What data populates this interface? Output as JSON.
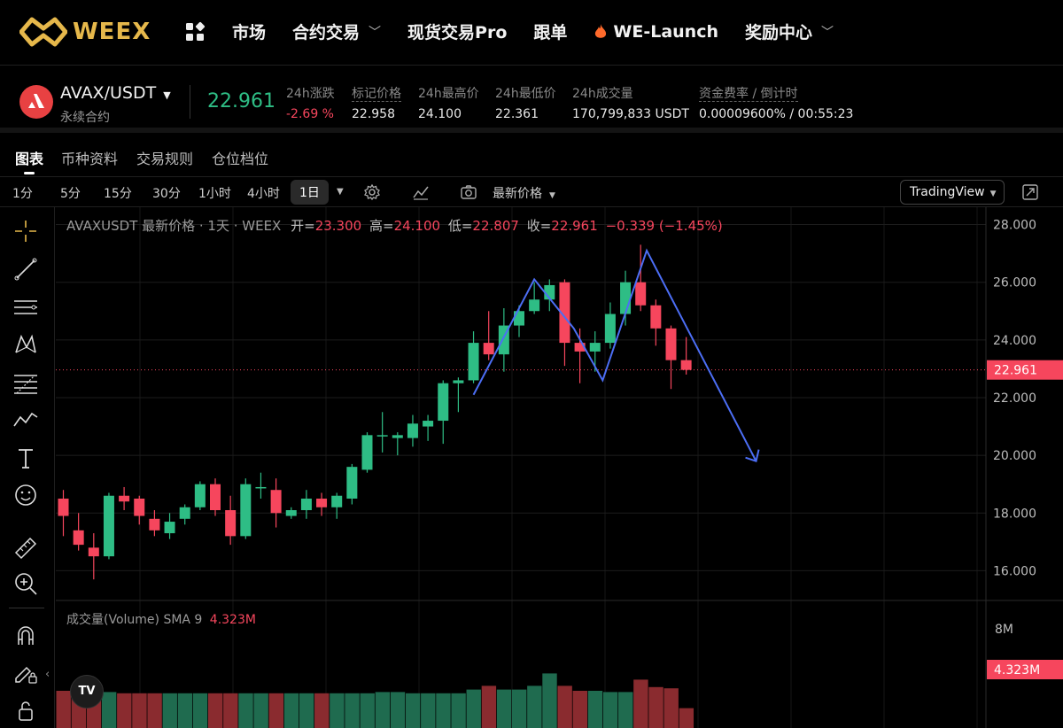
{
  "brand": {
    "name": "WEEX",
    "color": "#e6b84b"
  },
  "nav": {
    "items": [
      {
        "label": "市场",
        "dropdown": false
      },
      {
        "label": "合约交易",
        "dropdown": true
      },
      {
        "label": "现货交易Pro",
        "dropdown": false
      },
      {
        "label": "跟单",
        "dropdown": false
      },
      {
        "label": "WE-Launch",
        "dropdown": false,
        "icon": "flame-icon"
      },
      {
        "label": "奖励中心",
        "dropdown": true
      }
    ]
  },
  "ticker": {
    "pair": "AVAX/USDT",
    "contract_type": "永续合约",
    "last_price": "22.961",
    "stats": [
      {
        "label": "24h涨跌",
        "value": "-2.69 %",
        "color": "#f6465d"
      },
      {
        "label": "标记价格",
        "value": "22.958"
      },
      {
        "label": "24h最高价",
        "value": "24.100"
      },
      {
        "label": "24h最低价",
        "value": "22.361"
      },
      {
        "label": "24h成交量",
        "value": "170,799,833 USDT"
      },
      {
        "label": "资金费率 / 倒计时",
        "value": "0.00009600% / 00:55:23"
      }
    ]
  },
  "tabs": [
    "图表",
    "币种资料",
    "交易规则",
    "仓位档位"
  ],
  "intervals": [
    "1分",
    "5分",
    "15分",
    "30分",
    "1小时",
    "4小时",
    "1日"
  ],
  "active_interval": "1日",
  "price_type": "最新价格",
  "tradingview_label": "TradingView",
  "colors": {
    "up": "#2ebd85",
    "down": "#f6465d",
    "volume_up": "#1f6b4f",
    "volume_down": "#8a2b2f",
    "pattern_line": "#4c6ef5"
  },
  "legend": {
    "symbol": "AVAXUSDT 最新价格 · 1天 · WEEX",
    "open_label": "开=",
    "open": "23.300",
    "high_label": "高=",
    "high": "24.100",
    "low_label": "低=",
    "low": "22.807",
    "close_label": "收=",
    "close": "22.961",
    "change": "−0.339 (−1.45%)"
  },
  "volume_legend": {
    "label": "成交量(Volume) SMA 9",
    "value": "4.323M"
  },
  "tv_badge": "TV",
  "chart_data": {
    "type": "candlestick",
    "y_ticks": [
      "28.000",
      "26.000",
      "24.000",
      "22.000",
      "20.000",
      "18.000",
      "16.000"
    ],
    "ylim": [
      15.0,
      28.6
    ],
    "current_price": 22.961,
    "current_price_label": "22.961",
    "volume_ticks": [
      "8M"
    ],
    "volume_max": 10,
    "volume_current_label": "4.323M",
    "candles": [
      {
        "o": 18.5,
        "h": 18.8,
        "l": 17.2,
        "c": 17.9
      },
      {
        "o": 17.4,
        "h": 18.0,
        "l": 16.7,
        "c": 16.9
      },
      {
        "o": 16.8,
        "h": 17.3,
        "l": 15.7,
        "c": 16.5
      },
      {
        "o": 16.5,
        "h": 18.7,
        "l": 16.4,
        "c": 18.6
      },
      {
        "o": 18.6,
        "h": 18.9,
        "l": 18.1,
        "c": 18.4
      },
      {
        "o": 18.5,
        "h": 18.6,
        "l": 17.6,
        "c": 17.9
      },
      {
        "o": 17.8,
        "h": 18.1,
        "l": 17.2,
        "c": 17.4
      },
      {
        "o": 17.3,
        "h": 18.0,
        "l": 17.1,
        "c": 17.7
      },
      {
        "o": 17.8,
        "h": 18.3,
        "l": 17.6,
        "c": 18.2
      },
      {
        "o": 18.2,
        "h": 19.1,
        "l": 18.1,
        "c": 19.0
      },
      {
        "o": 19.0,
        "h": 19.2,
        "l": 17.9,
        "c": 18.1
      },
      {
        "o": 18.1,
        "h": 18.6,
        "l": 16.9,
        "c": 17.2
      },
      {
        "o": 17.2,
        "h": 19.2,
        "l": 17.1,
        "c": 19.0
      },
      {
        "o": 18.9,
        "h": 19.4,
        "l": 18.5,
        "c": 18.9
      },
      {
        "o": 18.8,
        "h": 19.2,
        "l": 17.5,
        "c": 18.0
      },
      {
        "o": 17.9,
        "h": 18.2,
        "l": 17.8,
        "c": 18.1
      },
      {
        "o": 18.1,
        "h": 18.8,
        "l": 17.8,
        "c": 18.5
      },
      {
        "o": 18.5,
        "h": 18.7,
        "l": 17.9,
        "c": 18.2
      },
      {
        "o": 18.2,
        "h": 18.7,
        "l": 17.8,
        "c": 18.6
      },
      {
        "o": 18.5,
        "h": 19.7,
        "l": 18.3,
        "c": 19.6
      },
      {
        "o": 19.5,
        "h": 20.8,
        "l": 19.4,
        "c": 20.7
      },
      {
        "o": 20.7,
        "h": 21.5,
        "l": 20.1,
        "c": 20.7
      },
      {
        "o": 20.6,
        "h": 20.8,
        "l": 20.0,
        "c": 20.7
      },
      {
        "o": 20.6,
        "h": 21.4,
        "l": 20.3,
        "c": 21.1
      },
      {
        "o": 21.0,
        "h": 21.4,
        "l": 20.5,
        "c": 21.2
      },
      {
        "o": 21.2,
        "h": 22.6,
        "l": 20.4,
        "c": 22.5
      },
      {
        "o": 22.5,
        "h": 22.7,
        "l": 21.5,
        "c": 22.6
      },
      {
        "o": 22.6,
        "h": 24.3,
        "l": 22.5,
        "c": 23.9
      },
      {
        "o": 23.9,
        "h": 25.0,
        "l": 23.3,
        "c": 23.5
      },
      {
        "o": 23.5,
        "h": 25.1,
        "l": 22.9,
        "c": 24.5
      },
      {
        "o": 24.5,
        "h": 25.2,
        "l": 24.1,
        "c": 25.0
      },
      {
        "o": 25.0,
        "h": 26.0,
        "l": 24.9,
        "c": 25.4
      },
      {
        "o": 25.4,
        "h": 26.1,
        "l": 25.0,
        "c": 25.9
      },
      {
        "o": 26.0,
        "h": 26.1,
        "l": 23.1,
        "c": 23.9
      },
      {
        "o": 23.9,
        "h": 24.4,
        "l": 22.5,
        "c": 23.6
      },
      {
        "o": 23.6,
        "h": 24.3,
        "l": 22.9,
        "c": 23.9
      },
      {
        "o": 23.9,
        "h": 25.3,
        "l": 23.7,
        "c": 24.9
      },
      {
        "o": 24.9,
        "h": 26.4,
        "l": 24.5,
        "c": 26.0
      },
      {
        "o": 26.0,
        "h": 27.3,
        "l": 25.0,
        "c": 25.2
      },
      {
        "o": 25.2,
        "h": 25.4,
        "l": 23.8,
        "c": 24.4
      },
      {
        "o": 24.4,
        "h": 24.5,
        "l": 22.3,
        "c": 23.3
      },
      {
        "o": 23.3,
        "h": 24.1,
        "l": 22.8,
        "c": 22.961
      }
    ],
    "volumes": [
      3.0,
      3.0,
      3.0,
      2.9,
      2.8,
      2.8,
      2.8,
      2.8,
      2.8,
      2.8,
      2.8,
      2.8,
      2.8,
      2.8,
      2.8,
      2.8,
      2.8,
      2.8,
      2.8,
      2.8,
      2.8,
      2.9,
      2.9,
      2.8,
      2.8,
      2.8,
      2.8,
      3.1,
      3.4,
      3.1,
      3.1,
      3.4,
      4.4,
      3.4,
      3.0,
      3.0,
      2.9,
      2.9,
      3.9,
      3.3,
      3.2,
      1.6
    ]
  }
}
